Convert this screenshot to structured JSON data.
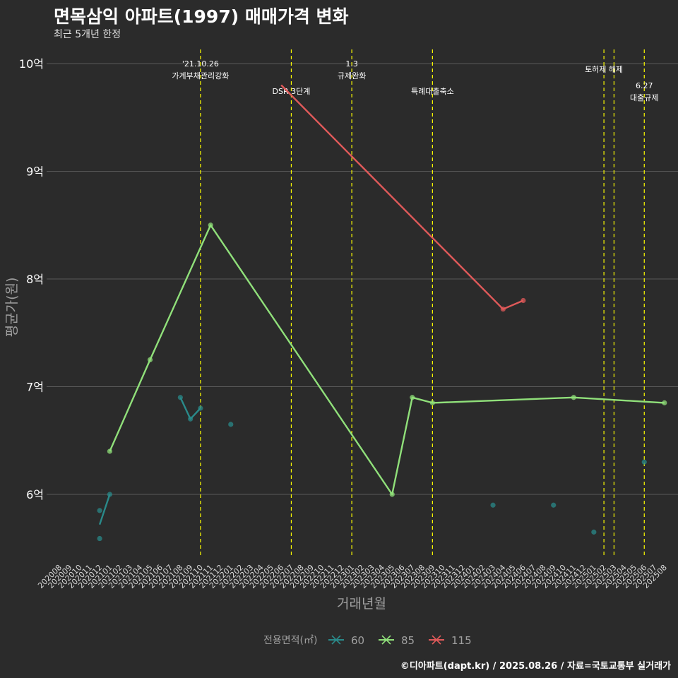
{
  "header": {
    "title": "면목삼익 아파트(1997) 매매가격 변화",
    "subtitle": "최근 5개년 한정"
  },
  "caption": "©디아파트(dapt.kr) / 2025.08.26 / 자료=국토교통부 실거래가",
  "colors": {
    "background": "#2b2b2b",
    "grid": "#5a5a5a",
    "s60": "#2a8a8a",
    "s85": "#90e07a",
    "s115": "#e05a5a",
    "event_line": "#ffff00",
    "axis_text": "#a0a0a0"
  },
  "chart_data": {
    "type": "line",
    "title": "면목삼익 아파트(1997) 매매가격 변화",
    "subtitle": "최근 5개년 한정",
    "xlabel": "거래년월",
    "ylabel": "평균가(원)",
    "legend_title": "전용면적(㎡)",
    "legend_position": "bottom",
    "grid": true,
    "ylim": [
      5.4,
      10.1
    ],
    "yticks": [
      6,
      7,
      8,
      9,
      10
    ],
    "ytick_labels": [
      "6억",
      "7억",
      "8억",
      "9억",
      "10억"
    ],
    "x_categories": [
      "202008",
      "202009",
      "202010",
      "202011",
      "202012",
      "202101",
      "202102",
      "202103",
      "202104",
      "202105",
      "202106",
      "202107",
      "202108",
      "202109",
      "202110",
      "202111",
      "202112",
      "202201",
      "202202",
      "202203",
      "202204",
      "202205",
      "202206",
      "202207",
      "202208",
      "202209",
      "202210",
      "202211",
      "202212",
      "202301",
      "202302",
      "202303",
      "202304",
      "202305",
      "202306",
      "202307",
      "202308",
      "202309",
      "202310",
      "202311",
      "202312",
      "202401",
      "202402",
      "202403",
      "202404",
      "202405",
      "202406",
      "202407",
      "202408",
      "202409",
      "202410",
      "202411",
      "202412",
      "202501",
      "202502",
      "202503",
      "202504",
      "202505",
      "202506",
      "202507",
      "202508"
    ],
    "series": [
      {
        "name": "60",
        "color": "#2a8a8a",
        "line": [
          [
            "202012",
            5.72
          ],
          [
            "202101",
            6.0
          ]
        ],
        "line2": [
          [
            "202108",
            6.9
          ],
          [
            "202109",
            6.7
          ],
          [
            "202110",
            6.8
          ]
        ],
        "points": [
          [
            "202012",
            5.85
          ],
          [
            "202012",
            5.59
          ],
          [
            "202101",
            6.0
          ],
          [
            "202108",
            6.9
          ],
          [
            "202109",
            6.7
          ],
          [
            "202110",
            6.8
          ],
          [
            "202201",
            6.65
          ],
          [
            "202403",
            5.9
          ],
          [
            "202409",
            5.9
          ],
          [
            "202501",
            5.65
          ],
          [
            "202506",
            6.3
          ]
        ]
      },
      {
        "name": "85",
        "color": "#90e07a",
        "line": [
          [
            "202101",
            6.4
          ],
          [
            "202105",
            7.25
          ],
          [
            "202111",
            8.5
          ],
          [
            "202305",
            6.0
          ],
          [
            "202307",
            6.9
          ],
          [
            "202309",
            6.85
          ],
          [
            "202411",
            6.9
          ],
          [
            "202508",
            6.85
          ]
        ],
        "points": [
          [
            "202101",
            6.4
          ],
          [
            "202105",
            7.25
          ],
          [
            "202111",
            8.5
          ],
          [
            "202305",
            6.0
          ],
          [
            "202307",
            6.9
          ],
          [
            "202309",
            6.85
          ],
          [
            "202411",
            6.9
          ],
          [
            "202508",
            6.85
          ]
        ]
      },
      {
        "name": "115",
        "color": "#e05a5a",
        "line": [
          [
            "202206",
            9.8
          ],
          [
            "202404",
            7.72
          ],
          [
            "202406",
            7.8
          ]
        ],
        "points": [
          [
            "202404",
            7.72
          ],
          [
            "202406",
            7.8
          ]
        ]
      }
    ],
    "events": [
      {
        "x": "202110",
        "line1": "'21.10.26",
        "line2": "가계부채관리강화",
        "level": "top"
      },
      {
        "x": "202207",
        "line1": "DSR 3단계",
        "line2": "",
        "level": "mid"
      },
      {
        "x": "202301",
        "line1": "1.3",
        "line2": "규제완화",
        "level": "top"
      },
      {
        "x": "202309",
        "line1": "특례대출축소",
        "line2": "",
        "level": "mid"
      },
      {
        "x": "202502",
        "line1": "토허제 해제",
        "line2": "",
        "level": "top2"
      },
      {
        "x": "202503",
        "line1": "",
        "line2": "",
        "level": "none"
      },
      {
        "x": "202506",
        "line1": "6.27",
        "line2": "대출규제",
        "level": "low"
      }
    ]
  }
}
